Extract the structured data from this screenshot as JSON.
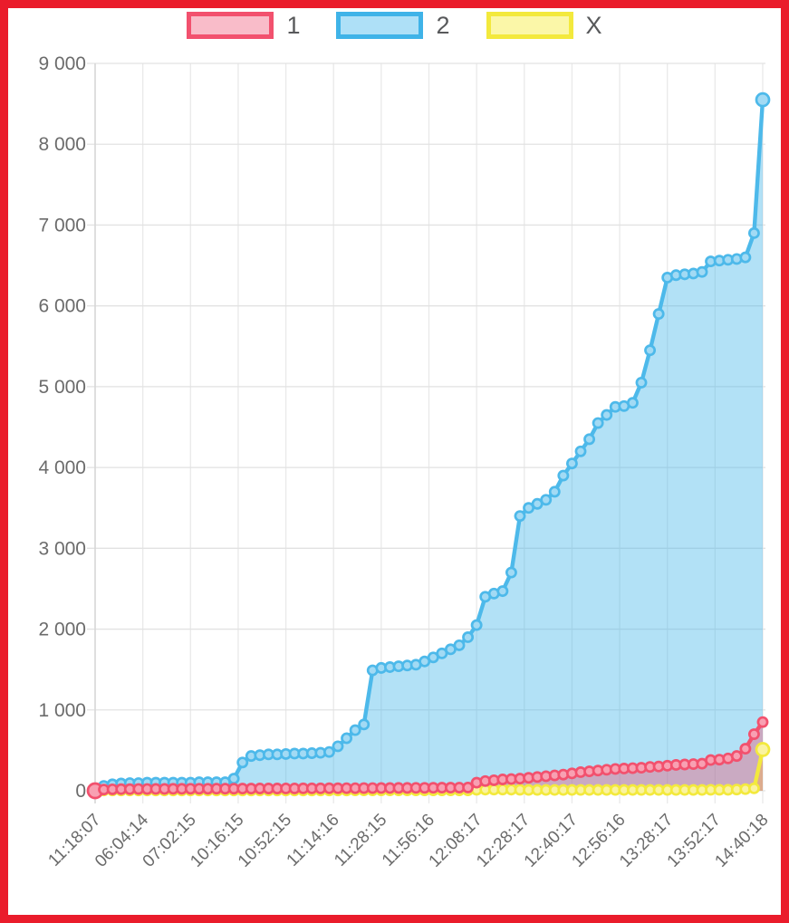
{
  "frame": {
    "border_color": "#ea1c2b",
    "background": "#ffffff"
  },
  "legend": {
    "items": [
      {
        "label": "1",
        "border_color": "#f2516e",
        "fill_color": "#f9bcc9"
      },
      {
        "label": "2",
        "border_color": "#3fb3e8",
        "fill_color": "#aee0f7"
      },
      {
        "label": "X",
        "border_color": "#f3e93d",
        "fill_color": "#fbf7a8"
      }
    ]
  },
  "axis": {
    "text_color": "#6b6b6b",
    "grid_color_h": "#e2e2e2",
    "grid_color_v": "#e9e9e9",
    "axis_line_color": "#d6d6d6"
  },
  "chart_data": {
    "type": "area",
    "title": "",
    "xlabel": "",
    "ylabel": "",
    "grid": true,
    "legend_position": "top",
    "ylim": [
      0,
      9000
    ],
    "y_ticks": {
      "values": [
        0,
        1000,
        2000,
        3000,
        4000,
        5000,
        6000,
        7000,
        8000,
        9000
      ],
      "labels": [
        "0",
        "1 000",
        "2 000",
        "3 000",
        "4 000",
        "5 000",
        "6 000",
        "7 000",
        "8 000",
        "9 000"
      ]
    },
    "x_labels": [
      "11:18:07",
      "06:04:14",
      "07:02:15",
      "10:16:15",
      "10:52:15",
      "11:14:16",
      "11:28:15",
      "11:56:16",
      "12:08:17",
      "12:28:17",
      "12:40:17",
      "12:56:16",
      "13:28:17",
      "13:52:17",
      "14:40:18"
    ],
    "render_order": [
      1,
      2,
      0
    ],
    "series": [
      {
        "name": "1",
        "line_color": "#f2516e",
        "marker_fill": "#f8a0b2",
        "area_color": "rgba(242,81,110,0.38)",
        "first_marker_radius": 8,
        "values": [
          0,
          15,
          18,
          20,
          20,
          22,
          22,
          23,
          23,
          24,
          24,
          25,
          25,
          25,
          26,
          26,
          26,
          27,
          27,
          28,
          28,
          28,
          29,
          29,
          30,
          30,
          30,
          31,
          31,
          32,
          32,
          33,
          33,
          34,
          34,
          35,
          35,
          36,
          36,
          37,
          38,
          38,
          39,
          40,
          100,
          120,
          130,
          140,
          145,
          150,
          160,
          170,
          180,
          190,
          200,
          215,
          230,
          240,
          250,
          260,
          270,
          275,
          280,
          285,
          295,
          300,
          310,
          320,
          325,
          330,
          335,
          380,
          385,
          400,
          430,
          520,
          700,
          850
        ]
      },
      {
        "name": "2",
        "line_color": "#4db9ea",
        "marker_fill": "#a2daf4",
        "area_color": "rgba(77,185,234,0.43)",
        "last_marker_radius": 7,
        "values": [
          0,
          60,
          80,
          90,
          95,
          95,
          100,
          100,
          100,
          100,
          100,
          100,
          105,
          105,
          105,
          105,
          150,
          350,
          430,
          440,
          450,
          450,
          455,
          460,
          460,
          465,
          470,
          480,
          550,
          650,
          750,
          820,
          1490,
          1520,
          1530,
          1540,
          1550,
          1560,
          1600,
          1650,
          1700,
          1750,
          1800,
          1900,
          2050,
          2400,
          2440,
          2470,
          2700,
          3400,
          3500,
          3550,
          3600,
          3700,
          3900,
          4050,
          4200,
          4350,
          4550,
          4650,
          4750,
          4760,
          4800,
          5050,
          5450,
          5900,
          6350,
          6380,
          6390,
          6400,
          6420,
          6550,
          6560,
          6570,
          6580,
          6600,
          6900,
          8550
        ]
      },
      {
        "name": "X",
        "line_color": "#f3e93d",
        "marker_fill": "#faf3a0",
        "area_color": "rgba(243,233,61,0.45)",
        "last_marker_radius": 7,
        "values": [
          0,
          3,
          3,
          3,
          3,
          3,
          3,
          3,
          3,
          3,
          3,
          3,
          3,
          3,
          3,
          3,
          4,
          4,
          4,
          4,
          4,
          4,
          4,
          4,
          4,
          4,
          4,
          4,
          4,
          4,
          5,
          5,
          5,
          5,
          5,
          5,
          5,
          5,
          5,
          5,
          5,
          5,
          5,
          5,
          12,
          14,
          15,
          15,
          14,
          12,
          10,
          10,
          10,
          10,
          10,
          10,
          10,
          10,
          10,
          10,
          10,
          10,
          10,
          10,
          10,
          10,
          10,
          10,
          10,
          10,
          10,
          12,
          12,
          12,
          15,
          20,
          30,
          510
        ]
      }
    ]
  }
}
